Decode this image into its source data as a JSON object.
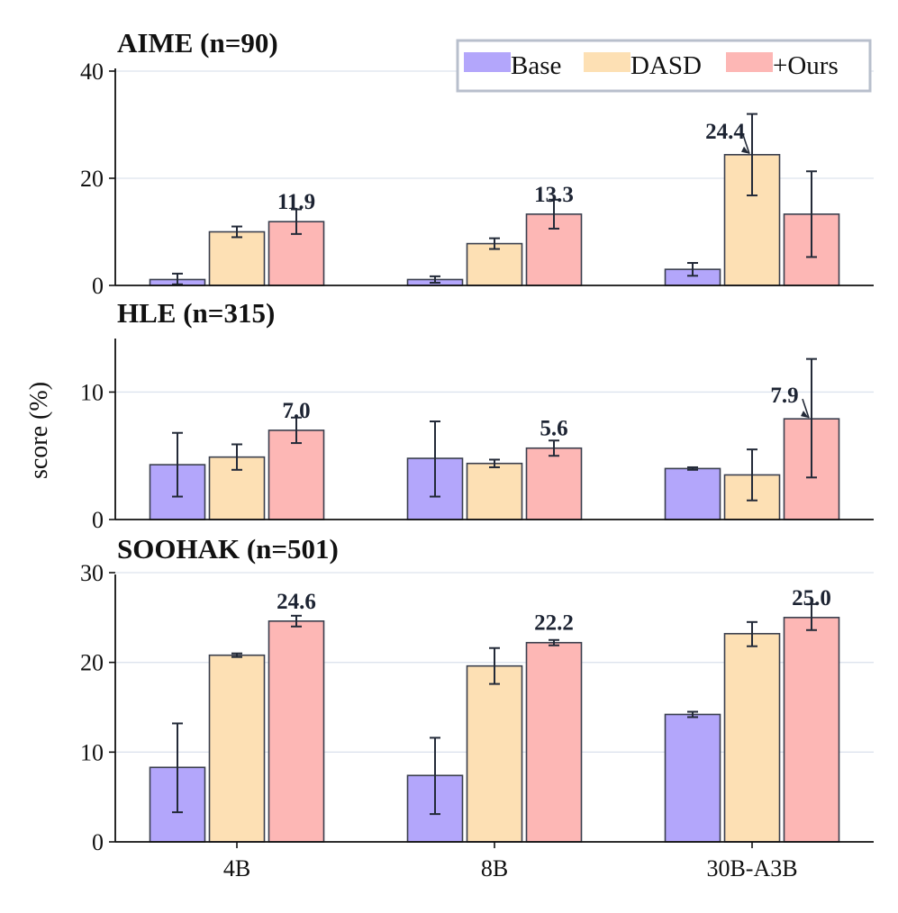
{
  "colors": {
    "base": "#b3a6fb",
    "dasd": "#fde0b4",
    "ours": "#fdb7b5",
    "bar_edge": "#3a3f4e",
    "grid": "#dde3ee",
    "axis": "#111111",
    "legend_border": "#b8bfcc"
  },
  "chart_data": {
    "type": "bar",
    "ylabel": "score (%)",
    "categories": [
      "4B",
      "8B",
      "30B-A3B"
    ],
    "legend": {
      "placement": "top-right",
      "entries": [
        "Base",
        "DASD",
        "+Ours"
      ]
    },
    "panels": [
      {
        "title": "AIME (n=90)",
        "ylim": [
          0,
          40.5
        ],
        "yticks": [
          0,
          20,
          40
        ],
        "grid": true,
        "series": [
          {
            "name": "Base",
            "values": [
              1.1,
              1.1,
              3.0
            ],
            "errors": [
              [
                0.2,
                2.2
              ],
              [
                0.5,
                1.7
              ],
              [
                1.8,
                4.2
              ]
            ]
          },
          {
            "name": "DASD",
            "values": [
              10.0,
              7.8,
              24.4
            ],
            "errors": [
              [
                9.0,
                11.0
              ],
              [
                6.8,
                8.8
              ],
              [
                16.8,
                32.0
              ]
            ]
          },
          {
            "name": "+Ours",
            "values": [
              11.9,
              13.3,
              13.3
            ],
            "errors": [
              [
                9.6,
                14.2
              ],
              [
                10.6,
                16.0
              ],
              [
                5.3,
                21.3
              ]
            ]
          }
        ],
        "annotations": [
          {
            "text": "11.9",
            "category": 0,
            "series": 2
          },
          {
            "text": "13.3",
            "category": 1,
            "series": 2
          },
          {
            "text": "24.4",
            "category": 2,
            "series": 1
          }
        ]
      },
      {
        "title": "HLE (n=315)",
        "ylim": [
          0,
          14.2
        ],
        "yticks": [
          0,
          10
        ],
        "grid": true,
        "series": [
          {
            "name": "Base",
            "values": [
              4.3,
              4.8,
              4.0
            ],
            "errors": [
              [
                1.8,
                6.8
              ],
              [
                1.8,
                7.7
              ],
              [
                3.9,
                4.1
              ]
            ]
          },
          {
            "name": "DASD",
            "values": [
              4.9,
              4.4,
              3.5
            ],
            "errors": [
              [
                3.9,
                5.9
              ],
              [
                4.1,
                4.7
              ],
              [
                1.5,
                5.5
              ]
            ]
          },
          {
            "name": "+Ours",
            "values": [
              7.0,
              5.6,
              7.9
            ],
            "errors": [
              [
                6.0,
                8.0
              ],
              [
                5.0,
                6.2
              ],
              [
                3.3,
                12.6
              ]
            ]
          }
        ],
        "annotations": [
          {
            "text": "7.0",
            "category": 0,
            "series": 2
          },
          {
            "text": "5.6",
            "category": 1,
            "series": 2
          },
          {
            "text": "7.9",
            "category": 2,
            "series": 2
          }
        ]
      },
      {
        "title": "SOOHAK (n=501)",
        "ylim": [
          0,
          29.8
        ],
        "yticks": [
          0,
          10,
          20,
          30
        ],
        "grid": true,
        "series": [
          {
            "name": "Base",
            "values": [
              8.3,
              7.4,
              14.2
            ],
            "errors": [
              [
                3.3,
                13.2
              ],
              [
                3.1,
                11.6
              ],
              [
                13.9,
                14.5
              ]
            ]
          },
          {
            "name": "DASD",
            "values": [
              20.8,
              19.6,
              23.2
            ],
            "errors": [
              [
                20.6,
                21.0
              ],
              [
                17.6,
                21.6
              ],
              [
                21.8,
                24.5
              ]
            ]
          },
          {
            "name": "+Ours",
            "values": [
              24.6,
              22.2,
              25.0
            ],
            "errors": [
              [
                24.0,
                25.2
              ],
              [
                21.9,
                22.5
              ],
              [
                23.6,
                26.5
              ]
            ]
          }
        ],
        "annotations": [
          {
            "text": "24.6",
            "category": 0,
            "series": 2
          },
          {
            "text": "22.2",
            "category": 1,
            "series": 2
          },
          {
            "text": "25.0",
            "category": 2,
            "series": 2
          }
        ]
      }
    ]
  }
}
